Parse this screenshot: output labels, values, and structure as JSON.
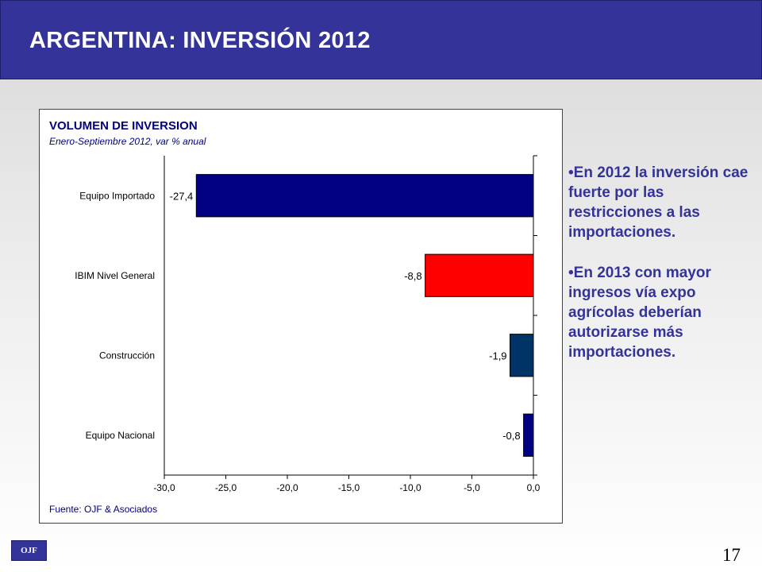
{
  "header": {
    "title": "ARGENTINA: INVERSIÓN 2012"
  },
  "bullets": [
    "•En 2012 la inversión cae fuerte por las restricciones a las importaciones.",
    "•En 2013 con mayor ingresos vía expo agrícolas deberían autorizarse más importaciones."
  ],
  "logo_text": "OJF",
  "page_number": "17",
  "chart_data": {
    "type": "bar",
    "orientation": "horizontal",
    "title": "VOLUMEN DE INVERSION",
    "subtitle": "Enero-Septiembre 2012, var % anual",
    "source": "Fuente: OJF & Asociados",
    "categories": [
      "Equipo Importado",
      "IBIM Nivel General",
      "Construcción",
      "Equipo Nacional"
    ],
    "values": [
      -27.4,
      -8.8,
      -1.9,
      -0.8
    ],
    "value_labels": [
      "-27,4",
      "-8,8",
      "-1,9",
      "-0,8"
    ],
    "colors": [
      "#000080",
      "#ff0000",
      "#003366",
      "#000080"
    ],
    "xlim": [
      -30,
      0
    ],
    "xticks": [
      -30,
      -25,
      -20,
      -15,
      -10,
      -5,
      0
    ],
    "xtick_labels": [
      "-30,0",
      "-25,0",
      "-20,0",
      "-15,0",
      "-10,0",
      "-5,0",
      "0,0"
    ],
    "grid": false,
    "legend": "none"
  }
}
